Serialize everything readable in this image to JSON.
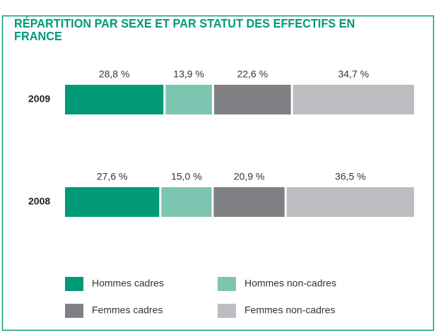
{
  "chart_data": {
    "type": "stacked-bar-horizontal",
    "title": "RÉPARTITION PAR SEXE ET PAR STATUT DES EFFECTIFS EN FRANCE",
    "categories": [
      "2009",
      "2008"
    ],
    "series": [
      {
        "name": "Hommes cadres",
        "color": "#009a78",
        "values": [
          28.8,
          27.6
        ],
        "value_labels": [
          "28,8 %",
          "27,6 %"
        ]
      },
      {
        "name": "Hommes non-cadres",
        "color": "#7cc5b1",
        "values": [
          13.9,
          15.0
        ],
        "value_labels": [
          "13,9 %",
          "15,0 %"
        ]
      },
      {
        "name": "Femmes cadres",
        "color": "#7f8083",
        "values": [
          22.6,
          20.9
        ],
        "value_labels": [
          "22,6 %",
          "20,9 %"
        ]
      },
      {
        "name": "Femmes non-cadres",
        "color": "#bcbdc0",
        "values": [
          34.7,
          36.5
        ],
        "value_labels": [
          "34,7 %",
          "36,5 %"
        ]
      }
    ]
  }
}
